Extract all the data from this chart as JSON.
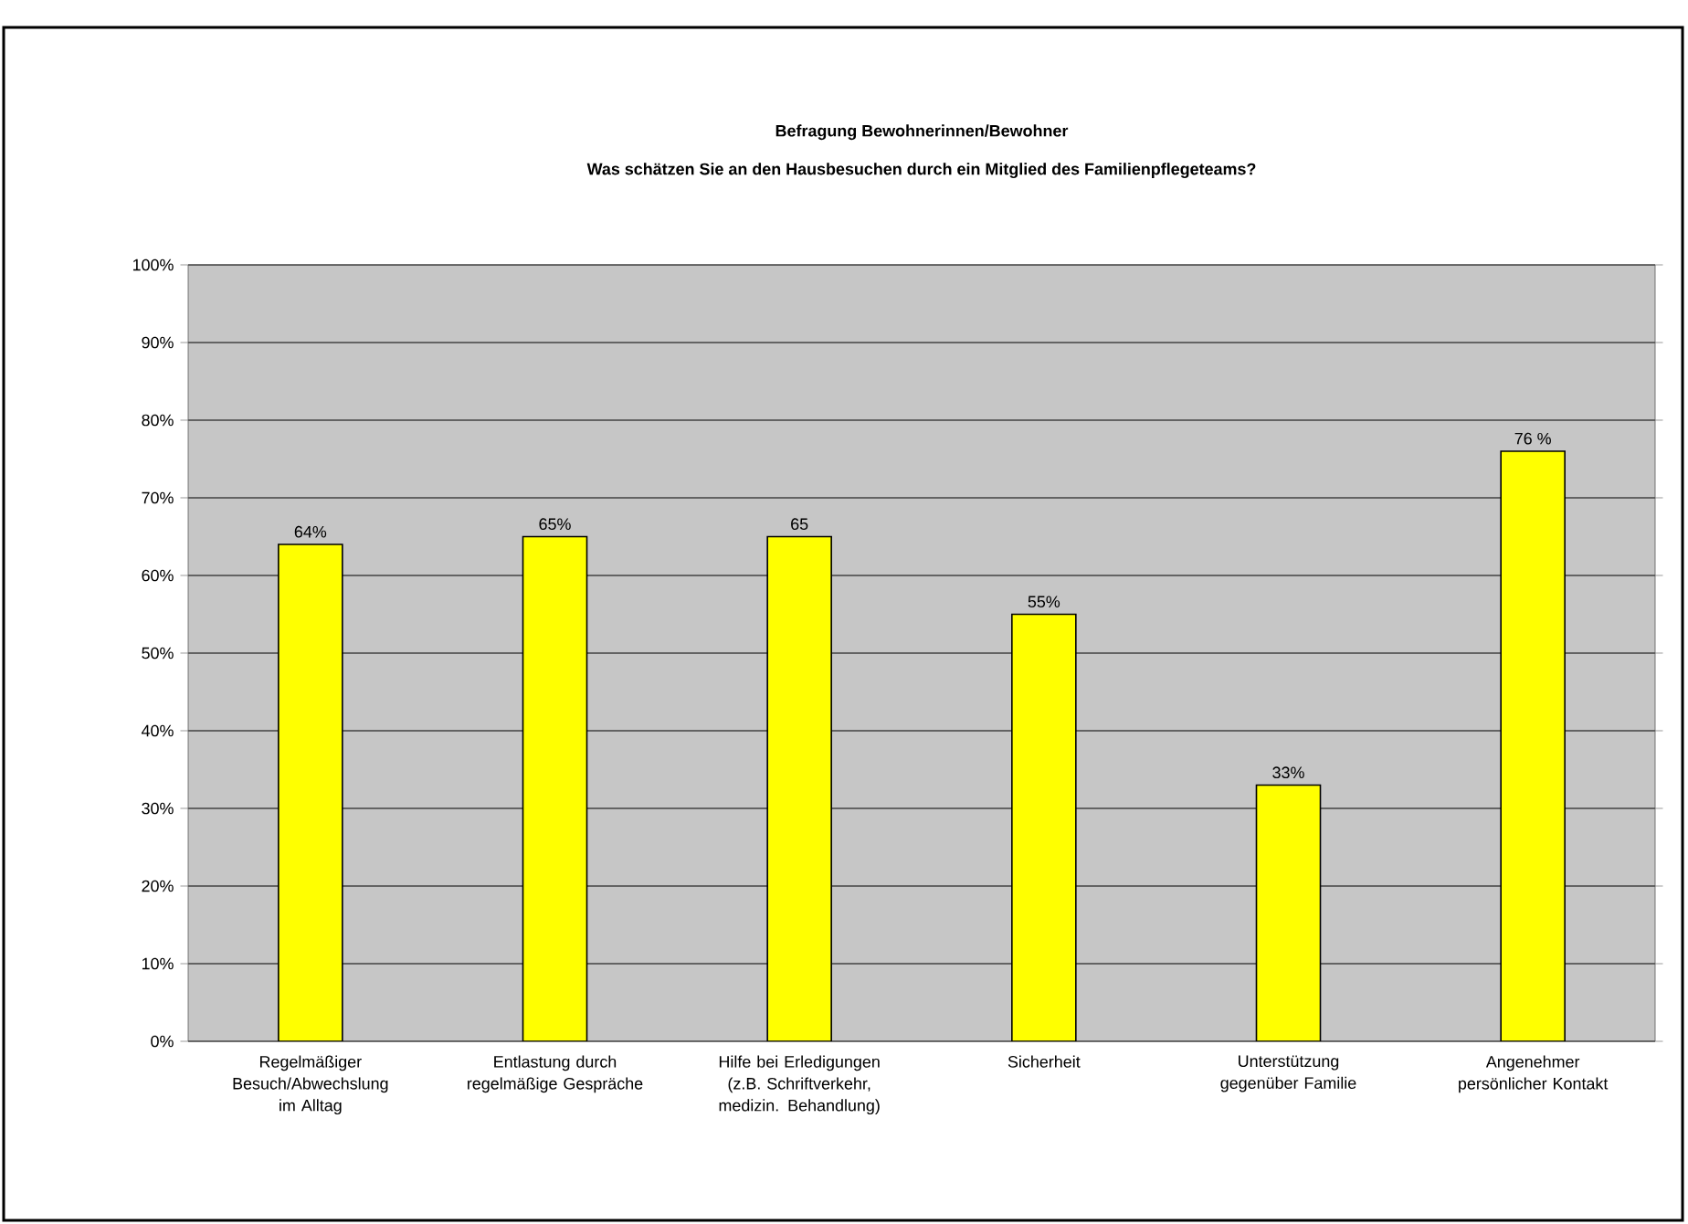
{
  "chart_data": {
    "type": "bar",
    "title": "Befragung Bewohnerinnen/Bewohner",
    "subtitle": "Was schätzen Sie an den Hausbesuchen durch ein Mitglied des Familienpflegeteams?",
    "categories": [
      "Regelmäßiger Besuch/Abwechslung im Alltag",
      "Entlastung durch regelmäßige Gespräche",
      "Hilfe bei Erledigungen (z.B. Schriftverkehr, medizin. Behandlung)",
      "Sicherheit",
      "Unterstützung gegenüber Familie",
      "Angenehmer persönlicher Kontakt"
    ],
    "values": [
      64,
      65,
      65,
      55,
      33,
      76
    ],
    "value_labels": [
      "64%",
      "65%",
      "65",
      "55%",
      "33%",
      "76 %"
    ],
    "color": "#ffff00",
    "ylim": [
      0,
      100
    ],
    "yticks": [
      {
        "value": 0,
        "label": "0%"
      },
      {
        "value": 10,
        "label": "10%"
      },
      {
        "value": 20,
        "label": "20%"
      },
      {
        "value": 30,
        "label": "30%"
      },
      {
        "value": 40,
        "label": "40%"
      },
      {
        "value": 50,
        "label": "50%"
      },
      {
        "value": 60,
        "label": "60%"
      },
      {
        "value": 70,
        "label": "70%"
      },
      {
        "value": 80,
        "label": "80%"
      },
      {
        "value": 90,
        "label": "90%"
      },
      {
        "value": 100,
        "label": "100%"
      }
    ],
    "grid": "y"
  }
}
